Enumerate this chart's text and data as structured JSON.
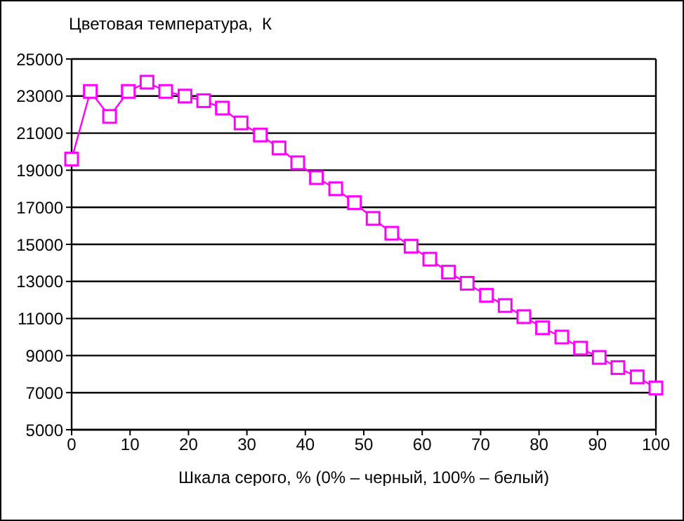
{
  "chart_data": {
    "type": "line",
    "title": "Цветовая температура,  К",
    "xlabel": "Шкала серого, % (0% – черный,  100% – белый)",
    "x": [
      0,
      3.2,
      6.5,
      9.7,
      12.9,
      16.1,
      19.4,
      22.6,
      25.8,
      29,
      32.3,
      35.5,
      38.7,
      41.9,
      45.2,
      48.4,
      51.6,
      54.8,
      58.1,
      61.3,
      64.5,
      67.7,
      71,
      74.2,
      77.4,
      80.6,
      83.9,
      87.1,
      90.3,
      93.5,
      96.8,
      100
    ],
    "series": [
      {
        "color": "#ff00ff",
        "values": [
          19600,
          23250,
          21900,
          23250,
          23750,
          23250,
          23000,
          22750,
          22350,
          21550,
          20900,
          20200,
          19400,
          18600,
          18000,
          17250,
          16400,
          15600,
          14900,
          14200,
          13500,
          12900,
          12250,
          11700,
          11100,
          10500,
          10000,
          9400,
          8900,
          8350,
          7850,
          7250
        ]
      }
    ],
    "xlim": [
      0,
      100
    ],
    "xticks": [
      0,
      10,
      20,
      30,
      40,
      50,
      60,
      70,
      80,
      90,
      100
    ],
    "ylim": [
      5000,
      25000
    ],
    "yticks": [
      5000,
      7000,
      9000,
      11000,
      13000,
      15000,
      17000,
      19000,
      21000,
      23000,
      25000
    ],
    "grid": "y",
    "legend": false,
    "marker": "square",
    "line_style": "solid"
  }
}
